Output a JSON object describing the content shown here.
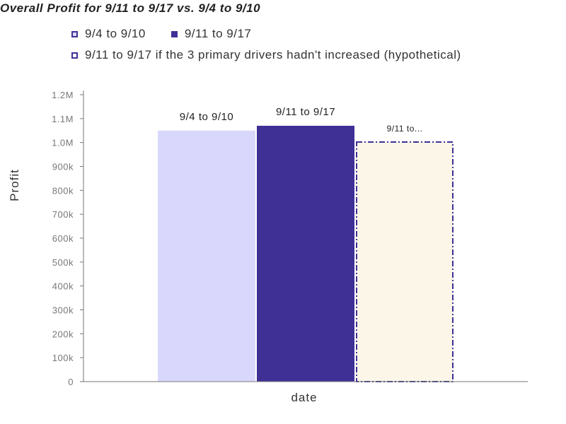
{
  "title": "Overall Profit for 9/11 to 9/17 vs. 9/4 to 9/10",
  "colors": {
    "series1_fill": "#d9d8fc",
    "series2_fill": "#3f3096",
    "series3_fill": "#fbf6e8",
    "series3_border": "#3f3096",
    "axis": "#777777"
  },
  "legend": [
    {
      "label": "9/4 to 9/10",
      "swatch": "#d9d8fc"
    },
    {
      "label": "9/11 to 9/17",
      "swatch": "#3f3096"
    },
    {
      "label": "9/11 to 9/17 if the 3 primary drivers hadn't increased (hypothetical)",
      "swatch": "#ffffff"
    }
  ],
  "chart_data": {
    "type": "bar",
    "title": "Overall Profit for 9/11 to 9/17 vs. 9/4 to 9/10",
    "xlabel": "date",
    "ylabel": "Profit",
    "ylim": [
      0,
      1200000
    ],
    "yticks": [
      0,
      100000,
      200000,
      300000,
      400000,
      500000,
      600000,
      700000,
      800000,
      900000,
      1000000,
      1100000,
      1200000
    ],
    "ytick_labels": [
      "0",
      "100k",
      "200k",
      "300k",
      "400k",
      "500k",
      "600k",
      "700k",
      "800k",
      "900k",
      "1.0M",
      "1.1M",
      "1.2M"
    ],
    "grid": false,
    "legend_position": "top",
    "series": [
      {
        "name": "9/4 to 9/10",
        "value": 1050000,
        "data_label": "9/4 to 9/10",
        "color": "#d9d8fc",
        "style": "solid"
      },
      {
        "name": "9/11 to 9/17",
        "value": 1070000,
        "data_label": "9/11 to 9/17",
        "color": "#3f3096",
        "style": "solid"
      },
      {
        "name": "9/11 to 9/17 if the 3 primary drivers hadn't increased (hypothetical)",
        "value": 1005000,
        "data_label": "9/11 to...",
        "color": "#fbf6e8",
        "style": "dashdot"
      }
    ]
  }
}
